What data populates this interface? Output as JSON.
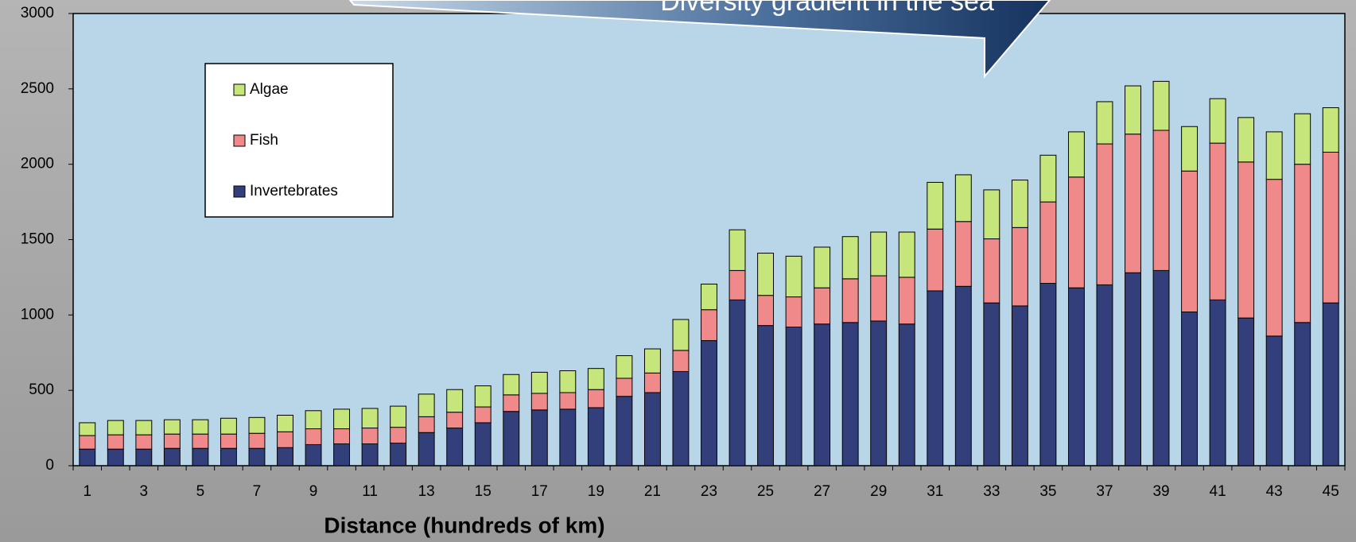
{
  "chart_data": {
    "type": "stacked_bar",
    "title": "Diversity gradient in the sea",
    "x_label": "Distance (hundreds of km)",
    "categories": [
      "1",
      null,
      "3",
      null,
      "5",
      null,
      "7",
      null,
      "9",
      null,
      "11",
      null,
      "13",
      null,
      "15",
      null,
      "17",
      null,
      "19",
      null,
      "21",
      null,
      "23",
      null,
      "25",
      null,
      "27",
      null,
      "29",
      null,
      "31",
      null,
      "33",
      null,
      "35",
      null,
      "37",
      null,
      "39",
      null,
      "41",
      null,
      "43",
      null,
      "45"
    ],
    "series": [
      {
        "name": "Invertebrates",
        "color": "#333f7a",
        "values": [
          110,
          110,
          110,
          115,
          115,
          115,
          115,
          120,
          140,
          145,
          145,
          150,
          220,
          250,
          285,
          360,
          370,
          375,
          385,
          460,
          485,
          625,
          830,
          1100,
          930,
          920,
          940,
          950,
          960,
          940,
          1160,
          1190,
          1080,
          1060,
          1210,
          1180,
          1200,
          1280,
          1295,
          1020,
          1100,
          980,
          860,
          950,
          1080
        ]
      },
      {
        "name": "Fish",
        "color": "#f08a8a",
        "values": [
          90,
          95,
          95,
          95,
          95,
          95,
          100,
          105,
          105,
          100,
          105,
          105,
          105,
          105,
          105,
          110,
          110,
          110,
          120,
          120,
          130,
          140,
          205,
          195,
          200,
          200,
          240,
          290,
          300,
          310,
          410,
          430,
          425,
          520,
          540,
          735,
          935,
          920,
          930,
          935,
          1040,
          1035,
          1040,
          1050,
          1000
        ]
      },
      {
        "name": "Algae",
        "color": "#c6e67c",
        "values": [
          85,
          95,
          95,
          95,
          95,
          105,
          105,
          110,
          120,
          130,
          130,
          140,
          150,
          150,
          140,
          135,
          140,
          145,
          140,
          150,
          160,
          205,
          170,
          270,
          280,
          270,
          270,
          280,
          290,
          300,
          310,
          310,
          325,
          315,
          310,
          300,
          280,
          320,
          325,
          295,
          295,
          295,
          315,
          335,
          295
        ]
      }
    ],
    "ylim": [
      0,
      3000
    ],
    "yticks": [
      0,
      500,
      1000,
      1500,
      2000,
      2500,
      3000
    ]
  }
}
